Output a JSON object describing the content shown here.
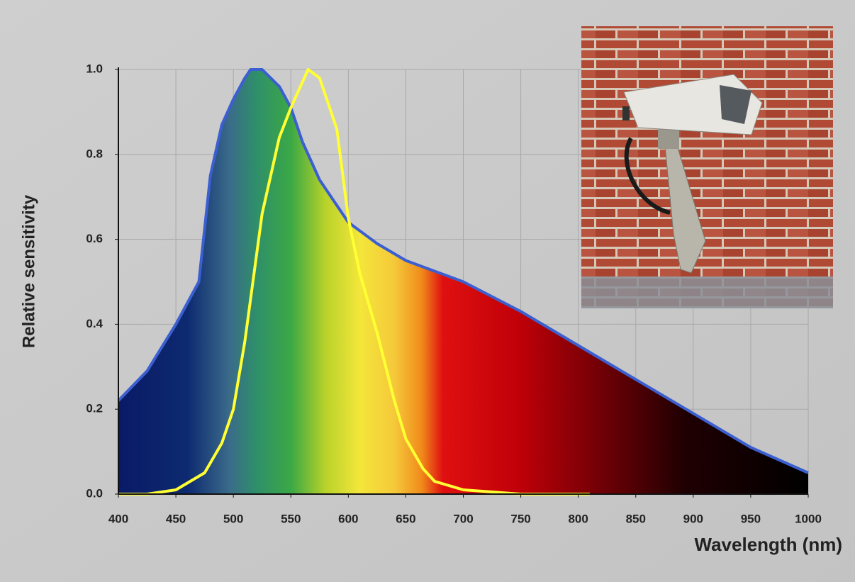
{
  "chart_data": {
    "type": "area-line",
    "x_label": "Wavelength (nm)",
    "y_label": "Relative sensitivity",
    "xlim": [
      400,
      1000
    ],
    "ylim": [
      0,
      1
    ],
    "xticks": [
      400,
      450,
      500,
      550,
      600,
      650,
      700,
      750,
      800,
      850,
      900,
      950,
      1000
    ],
    "yticks": [
      {
        "value": 0,
        "label": "0.0"
      },
      0.2,
      0.4,
      0.6,
      0.8,
      {
        "value": 1,
        "label": "1.0"
      }
    ],
    "grid": true,
    "series": [
      {
        "color": "#3b5fd0",
        "fill": "spectrum",
        "x": [
          400,
          425,
          450,
          470,
          480,
          490,
          500,
          510,
          515,
          525,
          540,
          550,
          560,
          575,
          600,
          625,
          650,
          700,
          750,
          800,
          850,
          900,
          950,
          1000
        ],
        "values": [
          0.22,
          0.29,
          0.4,
          0.5,
          0.75,
          0.87,
          0.93,
          0.98,
          1.0,
          1.0,
          0.96,
          0.91,
          0.83,
          0.74,
          0.64,
          0.59,
          0.55,
          0.5,
          0.43,
          0.35,
          0.27,
          0.19,
          0.11,
          0.05
        ]
      },
      {
        "color": "#ffff33",
        "fill": "none",
        "x": [
          400,
          425,
          450,
          475,
          490,
          500,
          510,
          525,
          540,
          550,
          565,
          575,
          590,
          600,
          610,
          625,
          640,
          650,
          665,
          675,
          700,
          750,
          810
        ],
        "values": [
          0.0,
          0.0,
          0.01,
          0.05,
          0.12,
          0.2,
          0.36,
          0.66,
          0.84,
          0.91,
          1.0,
          0.98,
          0.86,
          0.65,
          0.52,
          0.38,
          0.22,
          0.13,
          0.06,
          0.03,
          0.01,
          0.0,
          0.0
        ]
      }
    ]
  }
}
